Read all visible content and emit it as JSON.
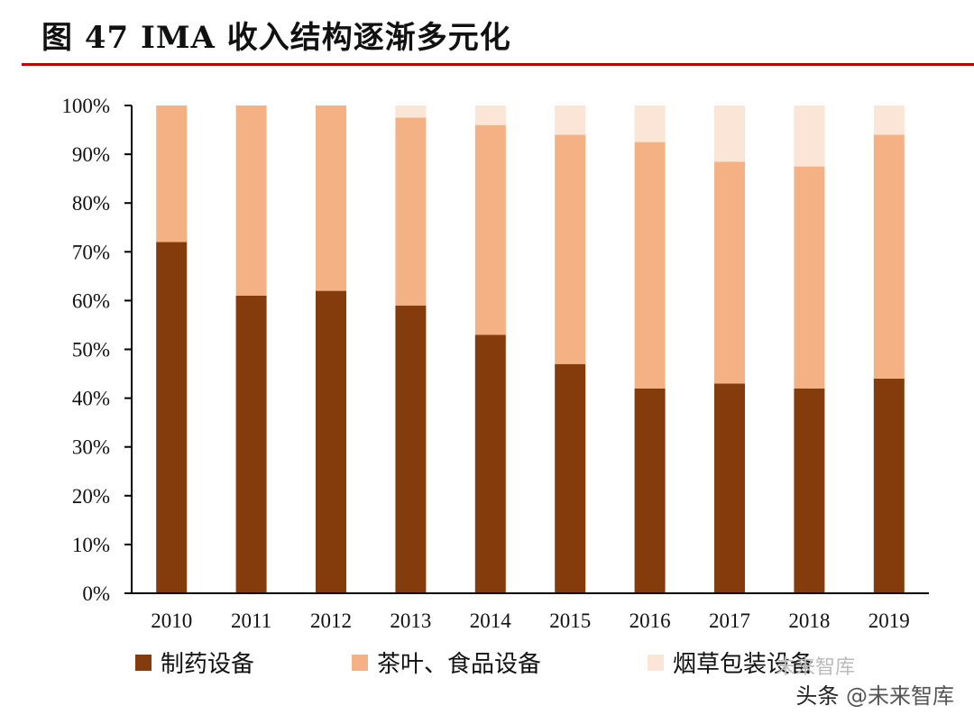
{
  "title": "图  47 IMA 收入结构逐渐多元化",
  "colors": {
    "pharma": "#843c0c",
    "food": "#f4b183",
    "tobacco": "#fbe5d6",
    "rule": "#c00000",
    "axis": "#000000"
  },
  "chart_data": {
    "type": "bar",
    "stacked": true,
    "normalized": true,
    "categories": [
      "2010",
      "2011",
      "2012",
      "2013",
      "2014",
      "2015",
      "2016",
      "2017",
      "2018",
      "2019"
    ],
    "series": [
      {
        "name": "制药设备",
        "key": "pharma",
        "values": [
          72,
          61,
          62,
          59,
          53,
          47,
          42,
          43,
          42,
          44
        ]
      },
      {
        "name": "茶叶、食品设备",
        "key": "food",
        "values": [
          28,
          39,
          38,
          38.5,
          43,
          47,
          50.5,
          45.5,
          45.5,
          50
        ]
      },
      {
        "name": "烟草包装设备",
        "key": "tobacco",
        "values": [
          0,
          0,
          0,
          2.5,
          4,
          6,
          7.5,
          11.5,
          12.5,
          6
        ]
      }
    ],
    "yticks": [
      "0%",
      "10%",
      "20%",
      "30%",
      "40%",
      "50%",
      "60%",
      "70%",
      "80%",
      "90%",
      "100%"
    ],
    "ylim": [
      0,
      100
    ],
    "legend_position": "bottom"
  },
  "watermark": {
    "source": "头条",
    "account": "@未来智库",
    "seal": "未来智库"
  }
}
